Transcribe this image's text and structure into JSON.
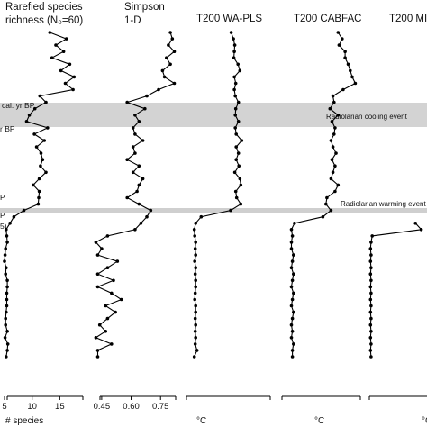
{
  "chart_data": {
    "type": "line",
    "headers": [
      [
        "Rarefied species",
        "richness (N₀=60)"
      ],
      [
        "Simpson",
        "1-D"
      ],
      [
        "T200 WA-PLS"
      ],
      [
        "T200 CABFAC"
      ],
      [
        "T200 MI"
      ]
    ],
    "axis_units": [
      "# species",
      "",
      "°C",
      "°C",
      "°C"
    ],
    "edge_labels": [
      "cal. yr BP",
      "r BP",
      "P",
      "P",
      "5)"
    ],
    "annotations": {
      "cooling": "Radiolarian cooling event",
      "warming": "Radiolarian warming event"
    },
    "bands": {
      "cooling": {
        "color": "#d3d3d3"
      },
      "warming": {
        "color": "#cfcfcf"
      }
    },
    "colors": {
      "line": "#000000",
      "band": "#d3d3d3"
    },
    "panels": [
      {
        "name": "richness",
        "xlim": [
          5,
          20
        ],
        "ticks": [
          5,
          10,
          15
        ],
        "tick_labels": [
          "5",
          "10",
          "15"
        ],
        "values": [
          13.2,
          16.2,
          14.3,
          15.7,
          13.6,
          16.8,
          15.2,
          17.6,
          16.0,
          17.4,
          11.4,
          12.5,
          10.5,
          9.5,
          9.0,
          12.8,
          10.4,
          12.2,
          10.8,
          11.6,
          11.9,
          11.5,
          12.5,
          11.3,
          10.2,
          11.3,
          11.2,
          11.1,
          8.5,
          6.7,
          6.0,
          5.3,
          5.4,
          5.5,
          5.2,
          5.1,
          5.0,
          5.3,
          5.2,
          5.5,
          5.5,
          5.4,
          5.4,
          5.4,
          5.3,
          5.2,
          5.2,
          5.5,
          5.1,
          5.6,
          5.5,
          5.3
        ]
      },
      {
        "name": "simpson",
        "xlim": [
          0.4,
          0.85
        ],
        "ticks": [
          0.45,
          0.6,
          0.75
        ],
        "tick_labels": [
          "0.45",
          "0.60",
          "0.75"
        ],
        "values": [
          0.8,
          0.81,
          0.79,
          0.82,
          0.78,
          0.8,
          0.76,
          0.77,
          0.82,
          0.74,
          0.68,
          0.58,
          0.67,
          0.62,
          0.64,
          0.61,
          0.62,
          0.66,
          0.61,
          0.62,
          0.58,
          0.64,
          0.61,
          0.66,
          0.64,
          0.63,
          0.58,
          0.64,
          0.7,
          0.68,
          0.65,
          0.62,
          0.48,
          0.42,
          0.45,
          0.43,
          0.53,
          0.48,
          0.43,
          0.51,
          0.43,
          0.5,
          0.55,
          0.47,
          0.52,
          0.48,
          0.44,
          0.47,
          0.42,
          0.5,
          0.43,
          0.43
        ]
      },
      {
        "name": "wapls",
        "xlim": [
          0,
          18
        ],
        "ticks": [],
        "tick_labels": [],
        "values": [
          9.5,
          10.0,
          10.3,
          10.2,
          10.1,
          11.0,
          11.4,
          10.2,
          10.5,
          10.2,
          10.4,
          11.1,
          10.5,
          10.4,
          11.1,
          10.4,
          10.6,
          11.8,
          10.6,
          11.1,
          10.6,
          11.2,
          10.3,
          11.4,
          11.6,
          10.5,
          10.7,
          11.6,
          9.4,
          3.0,
          1.8,
          1.5,
          1.6,
          1.8,
          1.7,
          1.8,
          1.6,
          1.8,
          1.7,
          1.8,
          1.8,
          1.7,
          1.6,
          1.8,
          1.8,
          1.7,
          1.8,
          1.7,
          1.8,
          1.7,
          2.1,
          1.5
        ]
      },
      {
        "name": "cabfac",
        "xlim": [
          0,
          8
        ],
        "ticks": [],
        "tick_labels": [],
        "values": [
          5.8,
          6.2,
          5.9,
          6.5,
          6.5,
          6.8,
          7.0,
          7.2,
          7.5,
          6.3,
          5.3,
          5.4,
          5.0,
          5.8,
          5.2,
          5.5,
          5.4,
          5.1,
          5.3,
          5.6,
          5.2,
          5.5,
          5.3,
          5.1,
          5.8,
          5.5,
          4.7,
          4.6,
          5.1,
          4.3,
          1.5,
          1.2,
          1.3,
          1.2,
          1.2,
          1.4,
          1.3,
          1.2,
          1.4,
          1.3,
          1.2,
          1.4,
          1.3,
          1.2,
          1.4,
          1.3,
          1.2,
          1.3,
          1.2,
          1.4,
          1.3,
          1.3
        ]
      },
      {
        "name": "mi",
        "xlim": [
          0,
          10
        ],
        "ticks": [],
        "tick_labels": [],
        "partial_values": [
          8.0,
          9.0,
          0.5,
          0.3,
          0.2,
          0.3,
          0.2,
          0.3,
          0.2,
          0.3,
          0.2,
          0.3,
          0.2,
          0.3,
          0.2,
          0.3,
          0.2,
          0.3,
          0.2,
          0.3,
          0.2,
          0.3
        ]
      }
    ],
    "gridlines": false,
    "legend": "none"
  }
}
